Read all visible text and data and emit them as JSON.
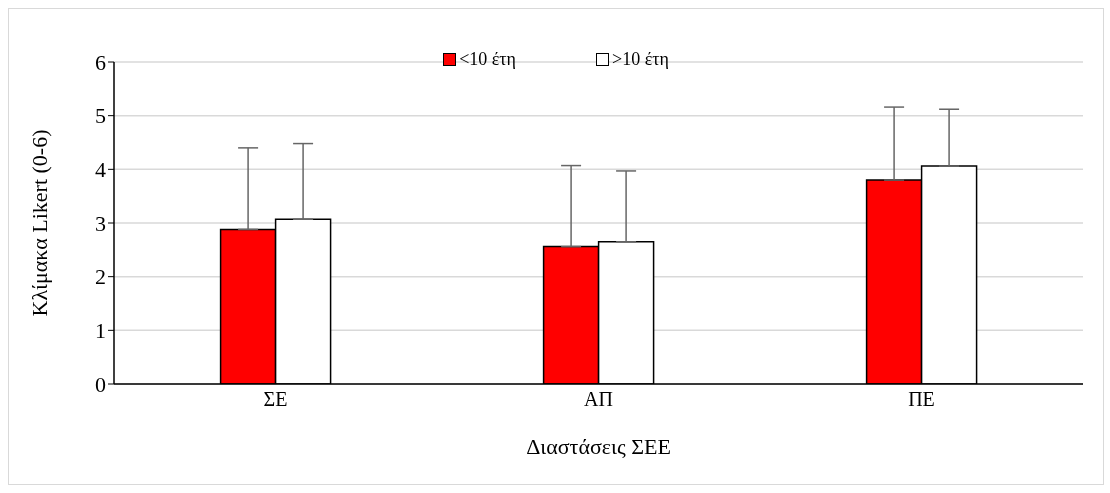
{
  "chart_data": {
    "type": "bar",
    "xlabel": "Διαστάσεις ΣΕΕ",
    "ylabel": "Κλίμακα Likert (0-6)",
    "categories": [
      "ΣΕ",
      "ΑΠ",
      "ΠΕ"
    ],
    "series": [
      {
        "name": "<10 έτη",
        "color": "#ff0000",
        "values": [
          2.88,
          2.56,
          3.8
        ],
        "errors": [
          [
            2.88,
            4.4
          ],
          [
            2.56,
            4.07
          ],
          [
            3.8,
            5.16
          ]
        ]
      },
      {
        "name": ">10 έτη",
        "color": "#ffffff",
        "values": [
          3.07,
          2.65,
          4.06
        ],
        "errors": [
          [
            3.07,
            4.48
          ],
          [
            2.65,
            3.97
          ],
          [
            4.06,
            5.12
          ]
        ]
      }
    ],
    "ylim": [
      0,
      6
    ],
    "yticks": [
      0,
      1,
      2,
      3,
      4,
      5,
      6
    ],
    "grid": "y",
    "legend": "top"
  }
}
